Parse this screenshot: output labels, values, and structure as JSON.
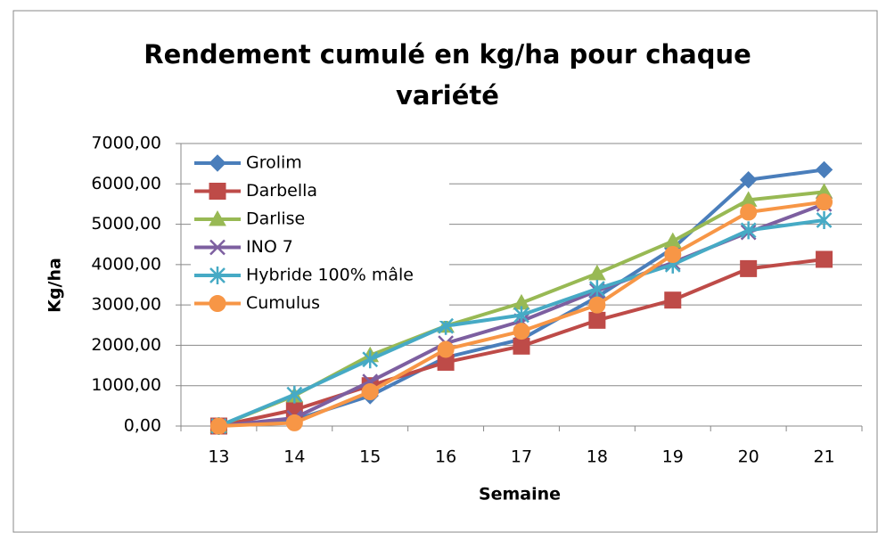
{
  "chart_data": {
    "type": "line",
    "title": "Rendement cumulé en kg/ha pour chaque variété",
    "xlabel": "Semaine",
    "ylabel": "Kg/ha",
    "categories": [
      "13",
      "14",
      "15",
      "16",
      "17",
      "18",
      "19",
      "20",
      "21"
    ],
    "ylim": [
      0,
      7000
    ],
    "yticks": [
      {
        "value": 0,
        "label": "0,00"
      },
      {
        "value": 1000,
        "label": "1000,00"
      },
      {
        "value": 2000,
        "label": "2000,00"
      },
      {
        "value": 3000,
        "label": "3000,00"
      },
      {
        "value": 4000,
        "label": "4000,00"
      },
      {
        "value": 5000,
        "label": "5000,00"
      },
      {
        "value": 6000,
        "label": "6000,00"
      },
      {
        "value": 7000,
        "label": "7000,00"
      }
    ],
    "grid": true,
    "legend": "upper left",
    "series": [
      {
        "name": "Grolim",
        "color": "#4a7ebb",
        "marker": "diamond",
        "values": [
          0,
          150,
          750,
          1700,
          2150,
          3200,
          4400,
          6100,
          6350
        ]
      },
      {
        "name": "Darbella",
        "color": "#be4b48",
        "marker": "square",
        "values": [
          0,
          400,
          1000,
          1580,
          1980,
          2620,
          3120,
          3900,
          4130
        ]
      },
      {
        "name": "Darlise",
        "color": "#98b954",
        "marker": "triangle",
        "values": [
          0,
          750,
          1750,
          2480,
          3050,
          3780,
          4580,
          5600,
          5800
        ]
      },
      {
        "name": "INO 7",
        "color": "#7d5fa0",
        "marker": "x",
        "values": [
          0,
          200,
          1100,
          2050,
          2600,
          3350,
          4050,
          4800,
          5500
        ]
      },
      {
        "name": "Hybride 100% mâle",
        "color": "#46aac5",
        "marker": "star",
        "values": [
          0,
          780,
          1650,
          2480,
          2750,
          3400,
          4000,
          4850,
          5100
        ]
      },
      {
        "name": "Cumulus",
        "color": "#f79646",
        "marker": "circle",
        "values": [
          0,
          80,
          850,
          1900,
          2350,
          3000,
          4250,
          5300,
          5550
        ]
      }
    ]
  }
}
